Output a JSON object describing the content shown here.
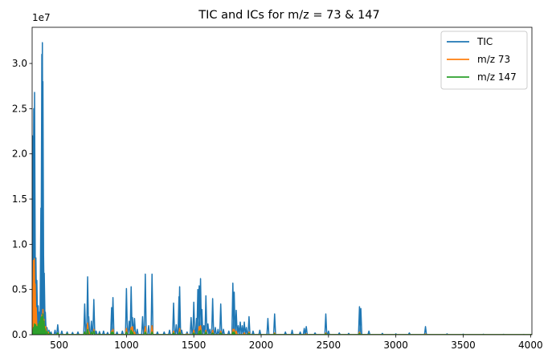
{
  "chart_data": {
    "type": "line",
    "title": "TIC and ICs for m/z = 73 & 147",
    "xlabel": "",
    "ylabel": "",
    "xlim": [
      300,
      4010
    ],
    "ylim": [
      0,
      34000000
    ],
    "y_offset_label": "1e7",
    "x_ticks": [
      {
        "value": 500,
        "label": "500"
      },
      {
        "value": 1000,
        "label": "1000"
      },
      {
        "value": 1500,
        "label": "1500"
      },
      {
        "value": 2000,
        "label": "2000"
      },
      {
        "value": 2500,
        "label": "2500"
      },
      {
        "value": 3000,
        "label": "3000"
      },
      {
        "value": 3500,
        "label": "3500"
      },
      {
        "value": 4000,
        "label": "4000"
      }
    ],
    "y_ticks": [
      {
        "value": 0,
        "label": "0.0"
      },
      {
        "value": 5000000,
        "label": "0.5"
      },
      {
        "value": 10000000,
        "label": "1.0"
      },
      {
        "value": 15000000,
        "label": "1.5"
      },
      {
        "value": 20000000,
        "label": "2.0"
      },
      {
        "value": 25000000,
        "label": "2.5"
      },
      {
        "value": 30000000,
        "label": "3.0"
      }
    ],
    "legend_position": "top-right",
    "grid": false,
    "series": [
      {
        "name": "TIC",
        "color": "#1f77b4",
        "baseline": 0,
        "peaks": [
          [
            302,
            22000000
          ],
          [
            306,
            21500000
          ],
          [
            312,
            25000000
          ],
          [
            318,
            26800000
          ],
          [
            322,
            9800000
          ],
          [
            328,
            8500000
          ],
          [
            335,
            6000000
          ],
          [
            345,
            3200000
          ],
          [
            355,
            2500000
          ],
          [
            365,
            14000000
          ],
          [
            372,
            31000000
          ],
          [
            376,
            32300000
          ],
          [
            380,
            28000000
          ],
          [
            385,
            8700000
          ],
          [
            390,
            6800000
          ],
          [
            398,
            2500000
          ],
          [
            410,
            800000
          ],
          [
            425,
            500000
          ],
          [
            440,
            300000
          ],
          [
            470,
            500000
          ],
          [
            490,
            1100000
          ],
          [
            520,
            400000
          ],
          [
            560,
            300000
          ],
          [
            600,
            250000
          ],
          [
            640,
            300000
          ],
          [
            690,
            3400000
          ],
          [
            705,
            1200000
          ],
          [
            712,
            6400000
          ],
          [
            720,
            2000000
          ],
          [
            740,
            1500000
          ],
          [
            758,
            3900000
          ],
          [
            775,
            400000
          ],
          [
            800,
            350000
          ],
          [
            830,
            400000
          ],
          [
            860,
            250000
          ],
          [
            890,
            3000000
          ],
          [
            900,
            4100000
          ],
          [
            930,
            300000
          ],
          [
            970,
            400000
          ],
          [
            1000,
            5100000
          ],
          [
            1020,
            1500000
          ],
          [
            1035,
            5300000
          ],
          [
            1045,
            1900000
          ],
          [
            1060,
            1800000
          ],
          [
            1080,
            600000
          ],
          [
            1120,
            2000000
          ],
          [
            1140,
            6700000
          ],
          [
            1165,
            1000000
          ],
          [
            1190,
            6700000
          ],
          [
            1230,
            300000
          ],
          [
            1280,
            300000
          ],
          [
            1320,
            500000
          ],
          [
            1350,
            3500000
          ],
          [
            1370,
            1100000
          ],
          [
            1390,
            4200000
          ],
          [
            1395,
            5300000
          ],
          [
            1410,
            500000
          ],
          [
            1450,
            300000
          ],
          [
            1480,
            1900000
          ],
          [
            1500,
            3600000
          ],
          [
            1520,
            1800000
          ],
          [
            1530,
            5000000
          ],
          [
            1540,
            5400000
          ],
          [
            1550,
            6200000
          ],
          [
            1560,
            2800000
          ],
          [
            1575,
            1000000
          ],
          [
            1590,
            4300000
          ],
          [
            1605,
            1200000
          ],
          [
            1620,
            600000
          ],
          [
            1640,
            4000000
          ],
          [
            1660,
            800000
          ],
          [
            1680,
            600000
          ],
          [
            1700,
            3400000
          ],
          [
            1720,
            600000
          ],
          [
            1760,
            400000
          ],
          [
            1790,
            5700000
          ],
          [
            1800,
            4700000
          ],
          [
            1815,
            2700000
          ],
          [
            1830,
            1000000
          ],
          [
            1845,
            1400000
          ],
          [
            1860,
            1000000
          ],
          [
            1875,
            1400000
          ],
          [
            1890,
            800000
          ],
          [
            1910,
            2000000
          ],
          [
            1940,
            400000
          ],
          [
            1990,
            500000
          ],
          [
            2050,
            1800000
          ],
          [
            2100,
            2300000
          ],
          [
            2180,
            300000
          ],
          [
            2230,
            500000
          ],
          [
            2290,
            300000
          ],
          [
            2320,
            700000
          ],
          [
            2335,
            900000
          ],
          [
            2400,
            200000
          ],
          [
            2480,
            2300000
          ],
          [
            2500,
            400000
          ],
          [
            2580,
            200000
          ],
          [
            2650,
            150000
          ],
          [
            2730,
            3100000
          ],
          [
            2740,
            2900000
          ],
          [
            2800,
            400000
          ],
          [
            2900,
            150000
          ],
          [
            3000,
            100000
          ],
          [
            3100,
            200000
          ],
          [
            3220,
            900000
          ],
          [
            3380,
            100000
          ],
          [
            3500,
            60000
          ],
          [
            3650,
            50000
          ],
          [
            3800,
            40000
          ],
          [
            3950,
            30000
          ]
        ]
      },
      {
        "name": "m/z 73",
        "color": "#ff7f0e",
        "baseline": 0,
        "peaks": [
          [
            302,
            4000000
          ],
          [
            310,
            8200000
          ],
          [
            316,
            8400000
          ],
          [
            322,
            5600000
          ],
          [
            330,
            3000000
          ],
          [
            340,
            800000
          ],
          [
            355,
            1000000
          ],
          [
            372,
            2200000
          ],
          [
            380,
            2800000
          ],
          [
            388,
            1700000
          ],
          [
            400,
            900000
          ],
          [
            420,
            300000
          ],
          [
            490,
            200000
          ],
          [
            560,
            100000
          ],
          [
            690,
            300000
          ],
          [
            712,
            1300000
          ],
          [
            720,
            400000
          ],
          [
            758,
            600000
          ],
          [
            800,
            100000
          ],
          [
            890,
            400000
          ],
          [
            900,
            600000
          ],
          [
            1000,
            700000
          ],
          [
            1035,
            800000
          ],
          [
            1045,
            900000
          ],
          [
            1060,
            300000
          ],
          [
            1140,
            900000
          ],
          [
            1190,
            1000000
          ],
          [
            1350,
            400000
          ],
          [
            1395,
            700000
          ],
          [
            1450,
            100000
          ],
          [
            1500,
            500000
          ],
          [
            1540,
            900000
          ],
          [
            1550,
            1000000
          ],
          [
            1590,
            500000
          ],
          [
            1640,
            500000
          ],
          [
            1700,
            400000
          ],
          [
            1790,
            600000
          ],
          [
            1800,
            600000
          ],
          [
            1815,
            400000
          ],
          [
            1875,
            200000
          ],
          [
            1910,
            300000
          ],
          [
            2100,
            200000
          ],
          [
            2335,
            100000
          ],
          [
            2480,
            200000
          ],
          [
            2730,
            300000
          ],
          [
            3220,
            80000
          ]
        ]
      },
      {
        "name": "m/z 147",
        "color": "#2ca02c",
        "baseline": 0,
        "peaks": [
          [
            302,
            200000
          ],
          [
            310,
            800000
          ],
          [
            318,
            1200000
          ],
          [
            326,
            1100000
          ],
          [
            335,
            900000
          ],
          [
            345,
            1200000
          ],
          [
            355,
            1500000
          ],
          [
            365,
            1900000
          ],
          [
            372,
            2000000
          ],
          [
            380,
            2300000
          ],
          [
            388,
            1500000
          ],
          [
            395,
            700000
          ],
          [
            410,
            400000
          ],
          [
            430,
            200000
          ],
          [
            490,
            200000
          ],
          [
            560,
            100000
          ],
          [
            690,
            300000
          ],
          [
            712,
            600000
          ],
          [
            740,
            300000
          ],
          [
            758,
            400000
          ],
          [
            800,
            100000
          ],
          [
            890,
            300000
          ],
          [
            900,
            300000
          ],
          [
            1000,
            300000
          ],
          [
            1035,
            500000
          ],
          [
            1045,
            300000
          ],
          [
            1140,
            300000
          ],
          [
            1190,
            300000
          ],
          [
            1350,
            200000
          ],
          [
            1395,
            300000
          ],
          [
            1500,
            200000
          ],
          [
            1540,
            400000
          ],
          [
            1550,
            500000
          ],
          [
            1590,
            300000
          ],
          [
            1640,
            200000
          ],
          [
            1700,
            200000
          ],
          [
            1790,
            300000
          ],
          [
            1800,
            300000
          ],
          [
            1910,
            150000
          ],
          [
            2100,
            100000
          ],
          [
            2480,
            100000
          ],
          [
            2730,
            150000
          ]
        ]
      }
    ]
  }
}
